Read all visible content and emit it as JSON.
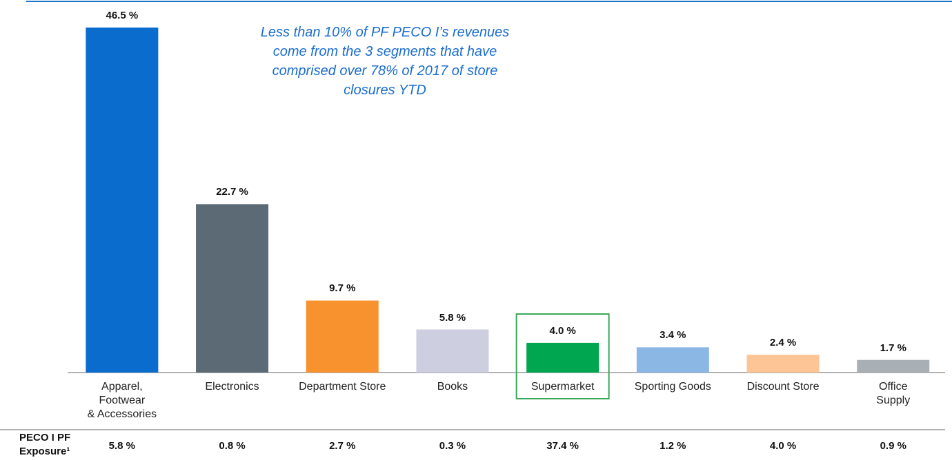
{
  "chart_data": {
    "type": "bar",
    "annotation": "Less than 10% of PF PECO I’s revenues\ncome from the 3 segments that have\ncomprised over 78% of 2017 of store\nclosures YTD",
    "categories": [
      "Apparel,\nFootwear\n& Accessories",
      "Electronics",
      "Department Store",
      "Books",
      "Supermarket",
      "Sporting Goods",
      "Discount Store",
      "Office Supply"
    ],
    "values": [
      46.5,
      22.7,
      9.7,
      5.8,
      4.0,
      3.4,
      2.4,
      1.7
    ],
    "value_labels": [
      "46.5 %",
      "22.7 %",
      "9.7 %",
      "5.8 %",
      "4.0 %",
      "3.4 %",
      "2.4 %",
      "1.7 %"
    ],
    "colors": [
      "#0a6ccc",
      "#5b6a74",
      "#f7922f",
      "#cdcedf",
      "#00a650",
      "#8ab7e4",
      "#fdc595",
      "#a8afb5"
    ],
    "highlight_index": 4,
    "highlight_color": "#3aa858",
    "exposure": {
      "label": "PECO I PF\nExposure¹",
      "values": [
        5.8,
        0.8,
        2.7,
        0.3,
        37.4,
        1.2,
        4.0,
        0.9
      ],
      "value_labels": [
        "5.8 %",
        "0.8 %",
        "2.7 %",
        "0.3 %",
        "37.4 %",
        "1.2 %",
        "4.0 %",
        "0.9 %"
      ]
    }
  }
}
